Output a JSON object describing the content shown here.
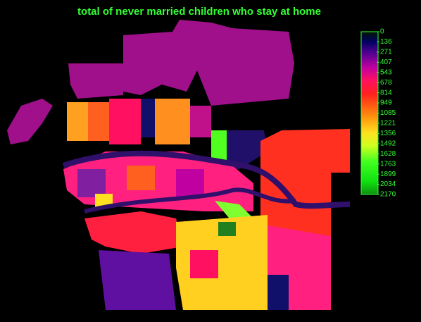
{
  "title": "total of never married children who stay at home",
  "legend": {
    "ticks": [
      0,
      136,
      271,
      407,
      543,
      678,
      814,
      949,
      1085,
      1221,
      1356,
      1492,
      1628,
      1763,
      1899,
      2034,
      2170
    ]
  }
}
